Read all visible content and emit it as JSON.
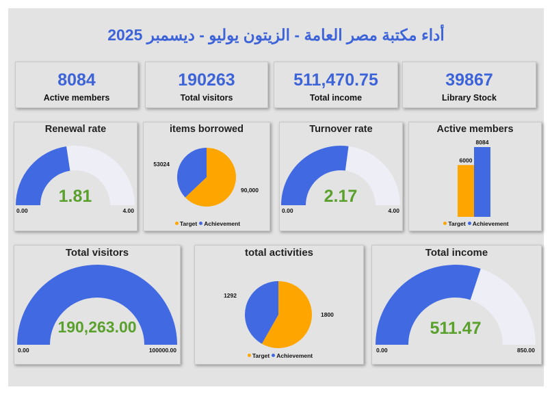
{
  "title": "أداء مكتبة مصر العامة - الزيتون  يوليو - ديسمبر 2025",
  "colors": {
    "accent": "#3d63d8",
    "target": "#ffa500",
    "achievement": "#4169e1",
    "gauge_bg": "#eeeef6",
    "value": "#5aa02c"
  },
  "kpis": [
    {
      "value": "8084",
      "label": "Active members"
    },
    {
      "value": "190263",
      "label": "Total visitors"
    },
    {
      "value": "511,470.75",
      "label": "Total income"
    },
    {
      "value": "39867",
      "label": "Library Stock"
    }
  ],
  "legend": {
    "target": "Target",
    "achievement": "Achievement"
  },
  "renewal": {
    "title": "Renewal rate",
    "value": 1.81,
    "value_label": "1.81",
    "min": 0,
    "max": 4,
    "min_label": "0.00",
    "max_label": "4.00"
  },
  "borrowed": {
    "title": "items borrowed",
    "target": 90000,
    "achievement": 53024,
    "target_label": "90,000",
    "achievement_label": "53024"
  },
  "turnover": {
    "title": "Turnover rate",
    "value": 2.17,
    "value_label": "2.17",
    "min": 0,
    "max": 4,
    "min_label": "0.00",
    "max_label": "4.00"
  },
  "members": {
    "title": "Active members",
    "target": 6000,
    "achievement": 8084,
    "target_label": "6000",
    "achievement_label": "8084"
  },
  "visitors": {
    "title": "Total visitors",
    "value": 190263,
    "value_label": "190,263.00",
    "min": 0,
    "max": 100000,
    "min_label": "0.00",
    "max_label": "100000.00"
  },
  "activities": {
    "title": "total activities",
    "target": 1800,
    "achievement": 1292,
    "target_label": "1800",
    "achievement_label": "1292"
  },
  "income": {
    "title": "Total income",
    "value": 511.47,
    "value_label": "511.47",
    "min": 0,
    "max": 850,
    "min_label": "0.00",
    "max_label": "850.00"
  }
}
